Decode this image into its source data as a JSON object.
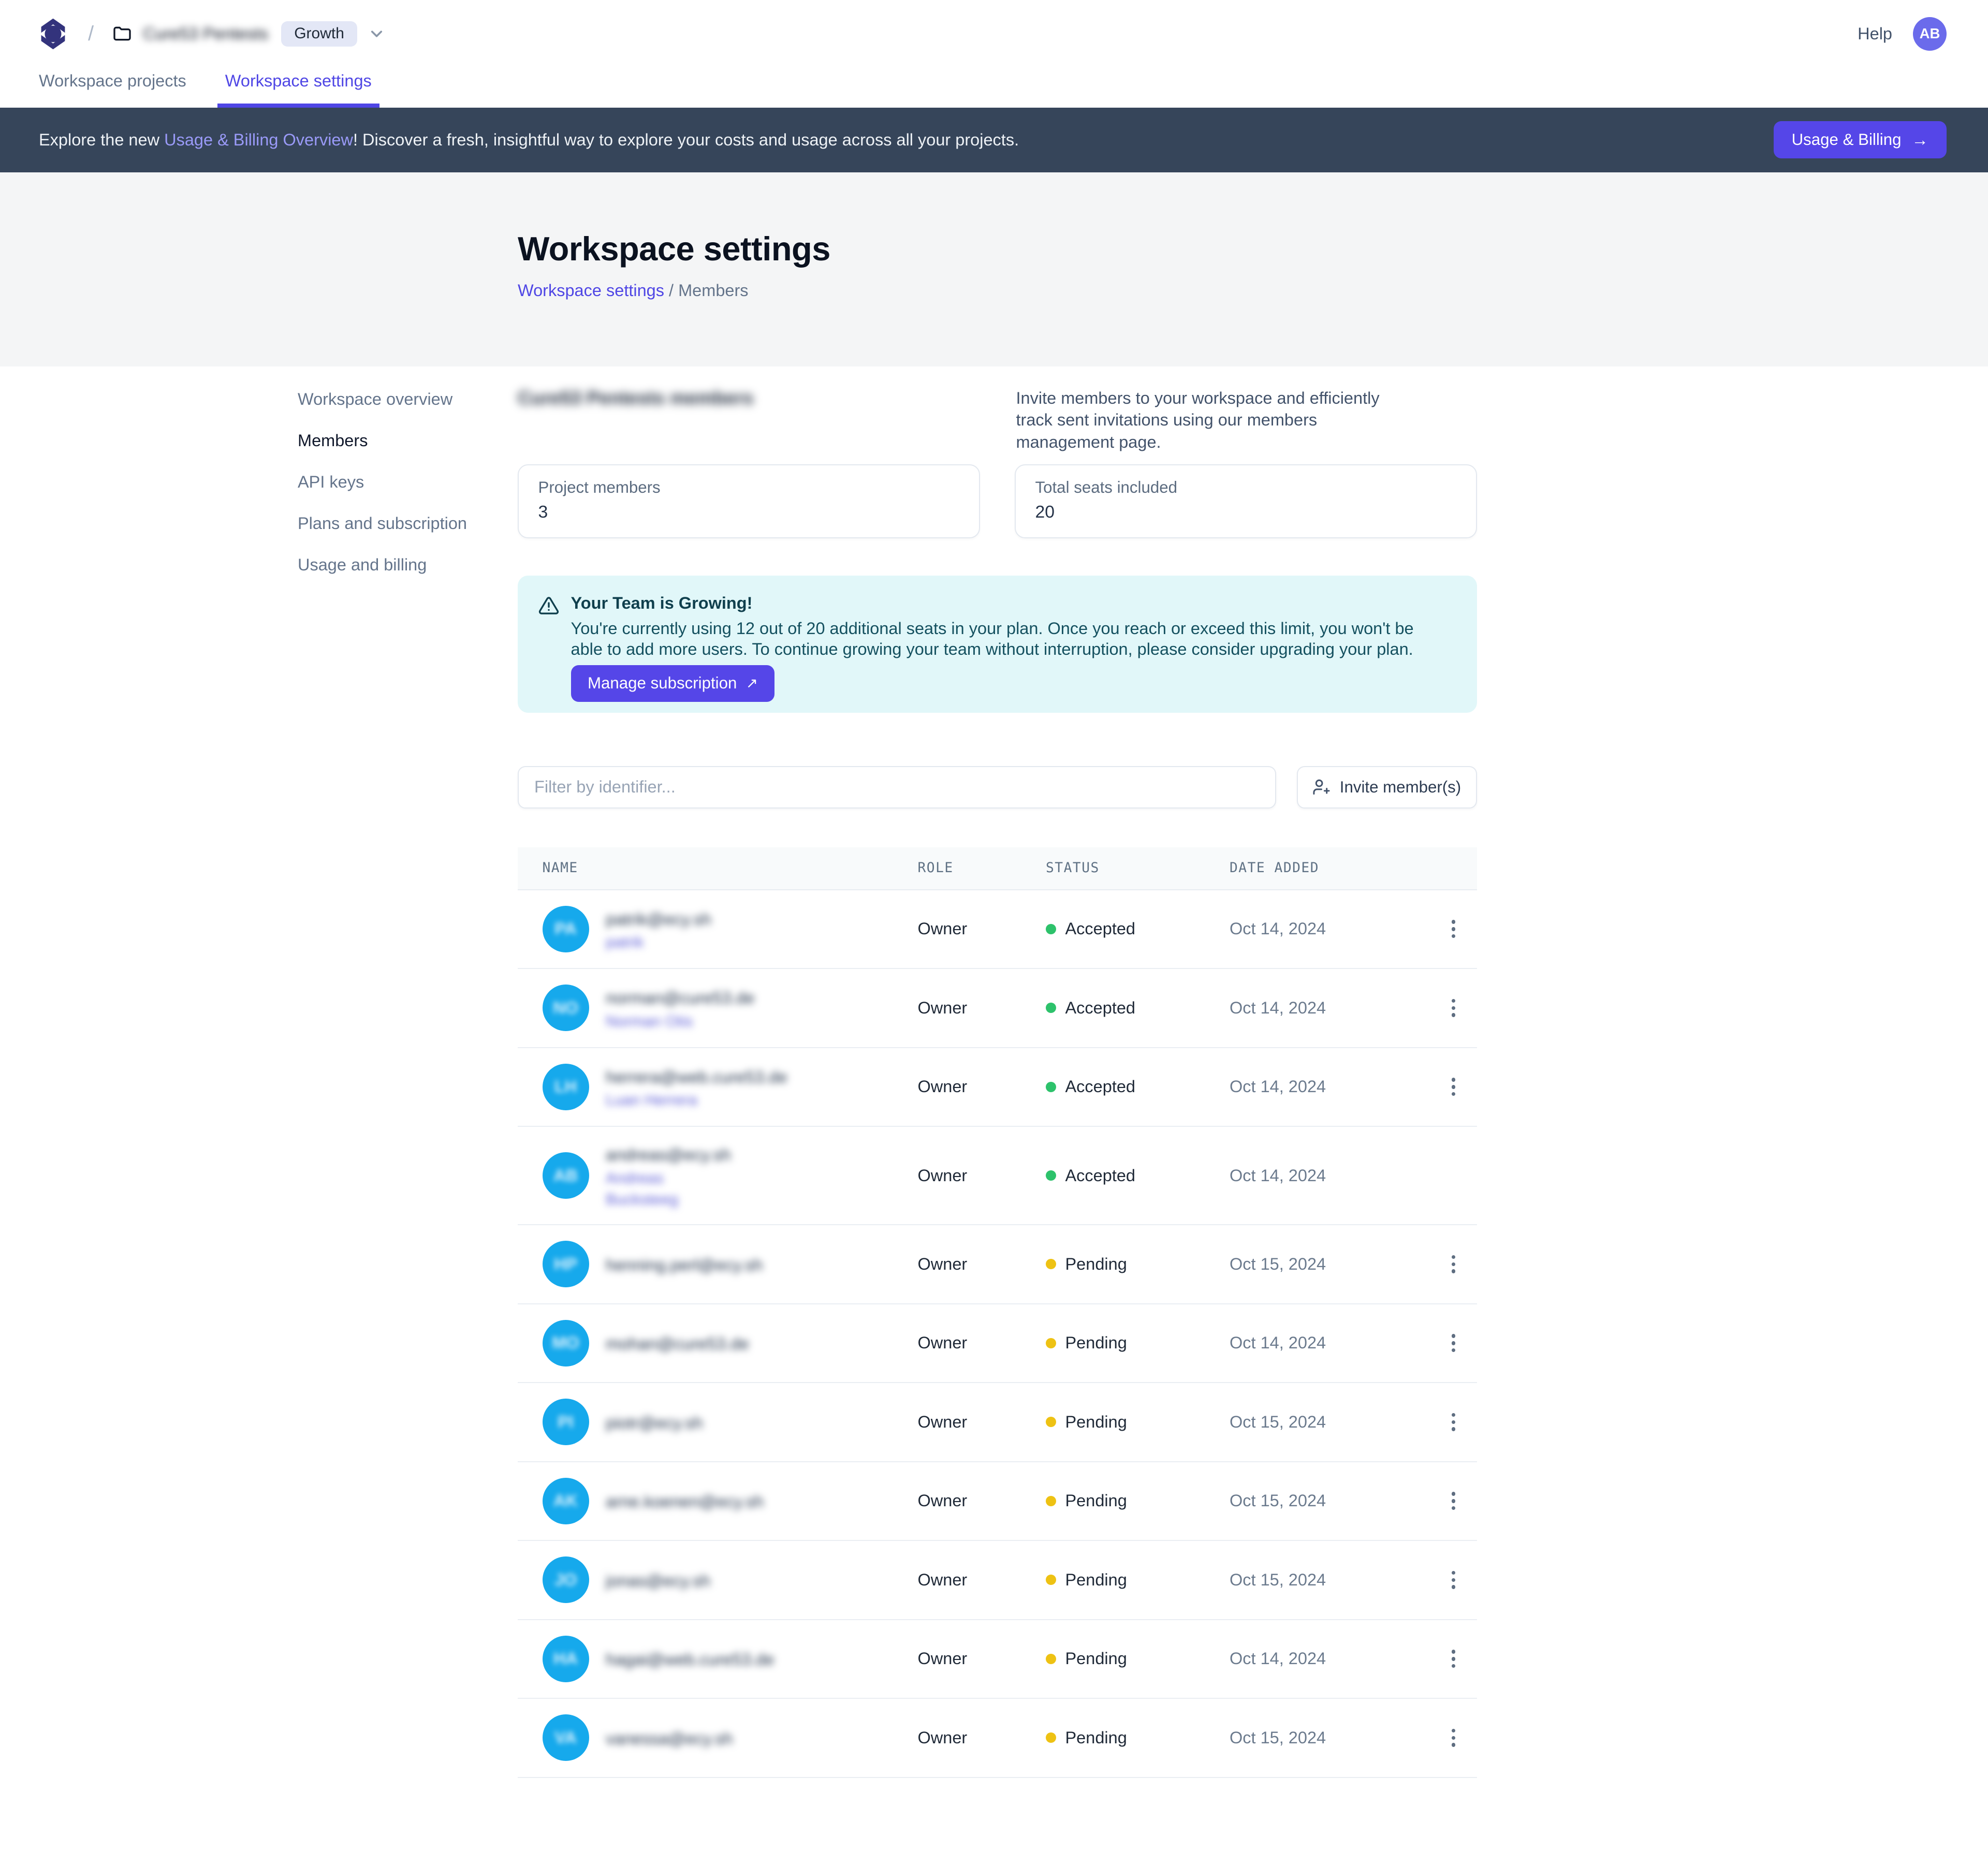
{
  "header": {
    "workspace_name": "Cure53 Pentests",
    "workspace_name_blurred": true,
    "breadcrumb_separator": "/",
    "plan_badge": "Growth",
    "help_label": "Help",
    "avatar_initials": "AB"
  },
  "tabs": {
    "projects": "Workspace projects",
    "settings": "Workspace settings",
    "active": "Workspace settings"
  },
  "banner": {
    "text_prefix": "Explore the new ",
    "link_text": "Usage & Billing Overview",
    "text_suffix": "! Discover a fresh, insightful way to explore your costs and usage across all your projects.",
    "button_label": "Usage & Billing",
    "button_arrow": "→"
  },
  "hero": {
    "title": "Workspace settings",
    "breadcrumb_link": "Workspace settings",
    "breadcrumb_divider": " / ",
    "breadcrumb_current": "Members"
  },
  "sidebar": {
    "items": [
      {
        "label": "Workspace overview",
        "active": false
      },
      {
        "label": "Members",
        "active": true
      },
      {
        "label": "API keys",
        "active": false
      },
      {
        "label": "Plans and subscription",
        "active": false
      },
      {
        "label": "Usage and billing",
        "active": false
      }
    ]
  },
  "members_section": {
    "heading": "Cure53 Pentests members",
    "heading_blurred": true,
    "description": "Invite members to your workspace and efficiently track sent invitations using our members management page.",
    "stats": [
      {
        "label": "Project members",
        "value": "3"
      },
      {
        "label": "Total seats included",
        "value": "20"
      }
    ],
    "alert": {
      "title": "Your Team is Growing!",
      "body": "You're currently using 12 out of 20 additional seats in your plan. Once you reach or exceed this limit, you won't be able to add more users. To continue growing your team without interruption, please consider upgrading your plan.",
      "button_label": "Manage subscription",
      "button_arrow": "↗",
      "background": "#e1f7f9",
      "text_color": "#14505f"
    },
    "filter_placeholder": "Filter by identifier...",
    "invite_button_label": "Invite member(s)"
  },
  "table": {
    "columns": [
      "NAME",
      "ROLE",
      "STATUS",
      "DATE ADDED"
    ],
    "rows": [
      {
        "initials": "PA",
        "email": "patrik@ecy.sh",
        "name_lines": [
          "patrik"
        ],
        "role": "Owner",
        "status": "Accepted",
        "date": "Oct 14, 2024",
        "has_menu": true,
        "blurred": true
      },
      {
        "initials": "NO",
        "email": "norman@cure53.de",
        "name_lines": [
          "Norman Otis"
        ],
        "role": "Owner",
        "status": "Accepted",
        "date": "Oct 14, 2024",
        "has_menu": true,
        "blurred": true
      },
      {
        "initials": "LH",
        "email": "herrera@web.cure53.de",
        "name_lines": [
          "Luan Herrera"
        ],
        "role": "Owner",
        "status": "Accepted",
        "date": "Oct 14, 2024",
        "has_menu": true,
        "blurred": true
      },
      {
        "initials": "AB",
        "email": "andreas@ecy.sh",
        "name_lines": [
          "Andreas",
          "Bucksteeg"
        ],
        "role": "Owner",
        "status": "Accepted",
        "date": "Oct 14, 2024",
        "has_menu": false,
        "blurred": true,
        "tall": true
      },
      {
        "initials": "HP",
        "email": "henning.perl@ecy.sh",
        "name_lines": [],
        "role": "Owner",
        "status": "Pending",
        "date": "Oct 15, 2024",
        "has_menu": true,
        "blurred": true
      },
      {
        "initials": "MO",
        "email": "mohan@cure53.de",
        "name_lines": [],
        "role": "Owner",
        "status": "Pending",
        "date": "Oct 14, 2024",
        "has_menu": true,
        "blurred": true
      },
      {
        "initials": "PI",
        "email": "piotr@ecy.sh",
        "name_lines": [],
        "role": "Owner",
        "status": "Pending",
        "date": "Oct 15, 2024",
        "has_menu": true,
        "blurred": true
      },
      {
        "initials": "AK",
        "email": "arne.koenen@ecy.sh",
        "name_lines": [],
        "role": "Owner",
        "status": "Pending",
        "date": "Oct 15, 2024",
        "has_menu": true,
        "blurred": true
      },
      {
        "initials": "JO",
        "email": "jonas@ecy.sh",
        "name_lines": [],
        "role": "Owner",
        "status": "Pending",
        "date": "Oct 15, 2024",
        "has_menu": true,
        "blurred": true
      },
      {
        "initials": "HA",
        "email": "hagai@web.cure53.de",
        "name_lines": [],
        "role": "Owner",
        "status": "Pending",
        "date": "Oct 14, 2024",
        "has_menu": true,
        "blurred": true
      },
      {
        "initials": "VA",
        "email": "vanessa@ecy.sh",
        "name_lines": [],
        "role": "Owner",
        "status": "Pending",
        "date": "Oct 15, 2024",
        "has_menu": true,
        "blurred": true
      }
    ]
  },
  "colors": {
    "accent_indigo": "#5546e8",
    "link_indigo": "#4f46e5",
    "banner_background": "#36455a",
    "banner_link": "#9a9af8",
    "hero_background": "#f4f5f6",
    "alert_background": "#e1f7f9",
    "alert_text": "#14505f",
    "avatar_blue": "#16a9ec",
    "header_avatar_purple": "#6b6beb",
    "status_accepted": "#2dc26b",
    "status_pending": "#eec213"
  }
}
